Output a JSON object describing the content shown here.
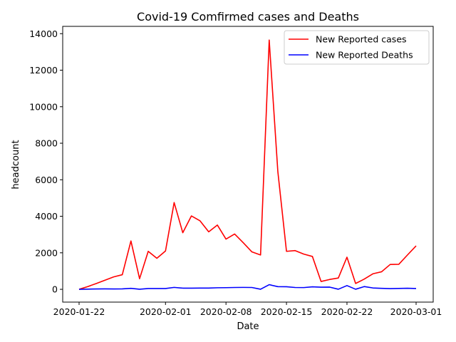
{
  "chart_data": {
    "type": "line",
    "title": "Covid-19 Comfirmed cases and Deaths",
    "xlabel": "Date",
    "ylabel": "headcount",
    "x": [
      "2020-01-22",
      "2020-01-23",
      "2020-01-24",
      "2020-01-25",
      "2020-01-26",
      "2020-01-27",
      "2020-01-28",
      "2020-01-29",
      "2020-01-30",
      "2020-01-31",
      "2020-02-01",
      "2020-02-02",
      "2020-02-03",
      "2020-02-04",
      "2020-02-05",
      "2020-02-06",
      "2020-02-07",
      "2020-02-08",
      "2020-02-09",
      "2020-02-10",
      "2020-02-11",
      "2020-02-12",
      "2020-02-13",
      "2020-02-14",
      "2020-02-15",
      "2020-02-16",
      "2020-02-17",
      "2020-02-18",
      "2020-02-19",
      "2020-02-20",
      "2020-02-21",
      "2020-02-22",
      "2020-02-23",
      "2020-02-24",
      "2020-02-25",
      "2020-02-26",
      "2020-02-27",
      "2020-02-28",
      "2020-02-29",
      "2020-03-01"
    ],
    "x_ticks": [
      "2020-01-22",
      "2020-02-01",
      "2020-02-08",
      "2020-02-15",
      "2020-02-22",
      "2020-03-01"
    ],
    "y_ticks": [
      0,
      2000,
      4000,
      6000,
      8000,
      10000,
      12000,
      14000
    ],
    "ylim": [
      -700,
      14400
    ],
    "grid": false,
    "legend_position": "top-right",
    "series": [
      {
        "name": "New Reported cases",
        "color": "#ff0000",
        "values": [
          0,
          150,
          320,
          500,
          680,
          800,
          2650,
          580,
          2080,
          1700,
          2100,
          4750,
          3100,
          4020,
          3750,
          3150,
          3520,
          2750,
          3030,
          2550,
          2050,
          1880,
          13650,
          6450,
          2080,
          2120,
          1930,
          1800,
          430,
          540,
          620,
          1760,
          320,
          560,
          850,
          960,
          1360,
          1370,
          1880,
          2380
        ]
      },
      {
        "name": "New Reported Deaths",
        "color": "#0000ff",
        "values": [
          0,
          10,
          20,
          25,
          20,
          25,
          55,
          5,
          45,
          45,
          45,
          105,
          65,
          65,
          70,
          70,
          85,
          90,
          100,
          105,
          100,
          5,
          255,
          145,
          140,
          100,
          95,
          135,
          115,
          120,
          5,
          205,
          5,
          150,
          75,
          55,
          40,
          50,
          60,
          45
        ]
      }
    ]
  }
}
